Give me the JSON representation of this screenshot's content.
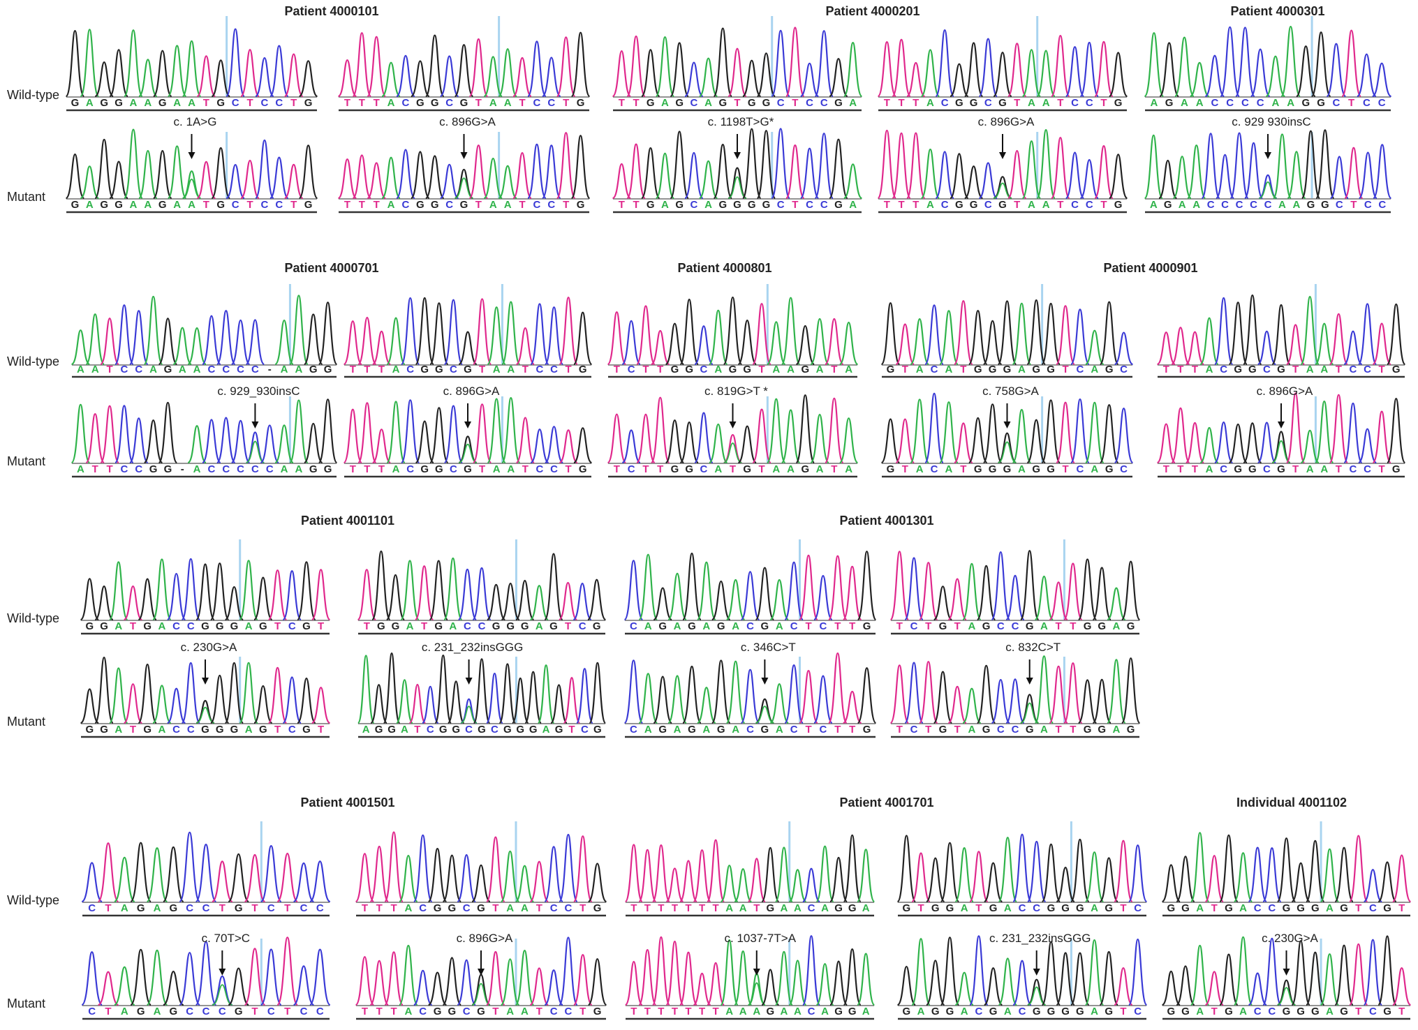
{
  "row_labels": {
    "wild_type": "Wild-type",
    "mutant": "Mutant"
  },
  "colors": {
    "A": "#2fb34a",
    "C": "#3a3ad6",
    "G": "#222222",
    "T": "#e0288c",
    "marker": "#a9d4f0"
  },
  "panels": [
    {
      "title": "Patient 4000101",
      "traces": [
        {
          "wt": "GAGGAAGAATGCTCCTG",
          "mut": "GAGGAAGAATGCTCCTG",
          "label": "c. 1A>G",
          "pos": 8
        },
        {
          "wt": "TTTACGGCGTAATCCTG",
          "mut": "TTTACGGCGTAATCCTG",
          "label": "c. 896G>A",
          "pos": 8
        }
      ]
    },
    {
      "title": "Patient 4000201",
      "traces": [
        {
          "wt": "TTGAGCAGTGGCTCCGA",
          "mut": "TTGAGCAGGGGCTCCGA",
          "label": "c. 1198T>G*",
          "pos": 8
        },
        {
          "wt": "TTTACGGCGTAATCCTG",
          "mut": "TTTACGGCGTAATCCTG",
          "label": "c. 896G>A",
          "pos": 8
        }
      ]
    },
    {
      "title": "Patient 4000301",
      "traces": [
        {
          "wt": "AGAACCCCAAGGCTCC",
          "mut": "AGAACCCCCAAGGCTCC",
          "label": "c. 929 930insC",
          "pos": 8
        }
      ]
    },
    {
      "title": "Patient 4000701",
      "traces": [
        {
          "wt": "AATCCAGAACCCC-AAGG",
          "mut": "ATTCCGG-ACCCCCAAGG",
          "label": "c. 929_930insC",
          "pos": 12
        },
        {
          "wt": "TTTACGGCGTAATCCTG",
          "mut": "TTTACGGCGTAATCCTG",
          "label": "c. 896G>A",
          "pos": 8
        }
      ]
    },
    {
      "title": "Patient 4000801",
      "traces": [
        {
          "wt": "TCTTGGCAGGTAAGATA",
          "mut": "TCTTGGCATGTAAGATA",
          "label": "c. 819G>T *",
          "pos": 8
        }
      ]
    },
    {
      "title": "Patient 4000901",
      "traces": [
        {
          "wt": "GTACATGGGAGGTCAGC",
          "mut": "GTACATGGGAGGTCAGC",
          "label": "c. 758G>A",
          "pos": 8
        },
        {
          "wt": "TTTACGGCGTAATCCTG",
          "mut": "TTTACGGCGTAATCCTG",
          "label": "c. 896G>A",
          "pos": 8
        }
      ]
    },
    {
      "title": "Patient 4001101",
      "traces": [
        {
          "wt": "GGATGACCGGGAGTCGT",
          "mut": "GGATGACCGGGAGTCGT",
          "label": "c. 230G>A",
          "pos": 8
        },
        {
          "wt": "TGGATGACCGGGAGTCG",
          "mut": "AGGATCGGCGCGGGAGTCG",
          "label": "c. 231_232insGGG",
          "pos": 8
        }
      ]
    },
    {
      "title": "Patient 4001301",
      "traces": [
        {
          "wt": "CAGAGAGACGACTCTTG",
          "mut": "CAGAGAGACGACTCTTG",
          "label": "c. 346C>T",
          "pos": 9
        },
        {
          "wt": "TCTGTAGCCGATTGGAG",
          "mut": "TCTGTAGCCGATTGGAG",
          "label": "c. 832C>T",
          "pos": 9
        }
      ]
    },
    {
      "title": "Patient 4001501",
      "traces": [
        {
          "wt": "CTAGAGCCTGTCTCC",
          "mut": "CTAGAGCCCGTCTCC",
          "label": "c. 70T>C",
          "pos": 8
        },
        {
          "wt": "TTTACGGCGTAATCCTG",
          "mut": "TTTACGGCGTAATCCTG",
          "label": "c. 896G>A",
          "pos": 8
        }
      ]
    },
    {
      "title": "Patient 4001701",
      "traces": [
        {
          "wt": "TTTTTTTAATGAACAGGA",
          "mut": "TTTTTTTAAAGAACAGGA",
          "label": "c. 1037-7T>A",
          "pos": 9
        },
        {
          "wt": "GTGGATGACCGGGAGTC",
          "mut": "GAGGACGACGGGGAGTC",
          "label": "c. 231_232insGGG",
          "pos": 9
        }
      ]
    },
    {
      "title": "Individual 4001102",
      "traces": [
        {
          "wt": "GGATGACCGGGAGTCGT",
          "mut": "GGATGACCGGGAGTCGT",
          "label": "c. 230G>A",
          "pos": 8
        }
      ]
    }
  ]
}
